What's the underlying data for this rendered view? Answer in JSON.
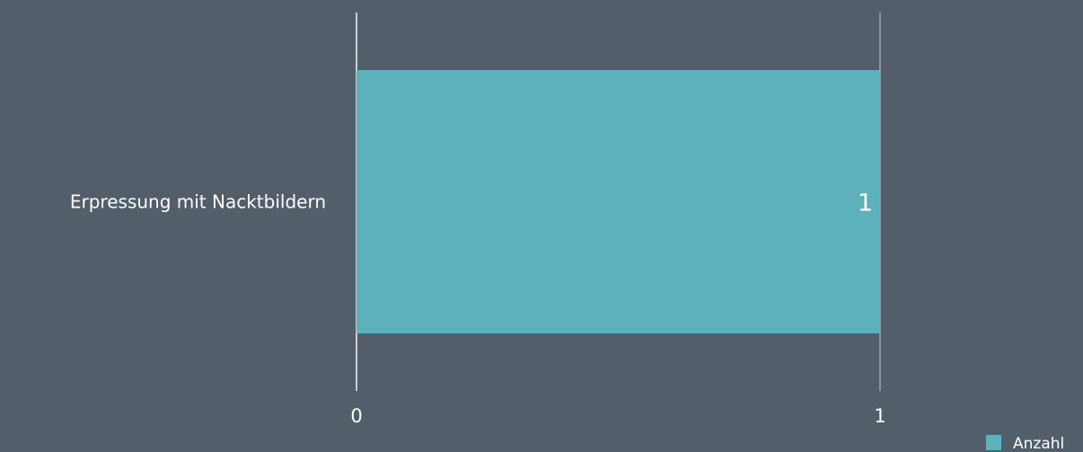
{
  "chart_data": {
    "type": "bar",
    "orientation": "horizontal",
    "categories": [
      "Erpressung mit Nacktbildern"
    ],
    "series": [
      {
        "name": "Anzahl",
        "values": [
          1
        ],
        "color": "#5db1bc"
      }
    ],
    "xlim": [
      0,
      1
    ],
    "x_ticks": [
      "0",
      "1"
    ],
    "grid": true,
    "legend": "bottom-right",
    "colors": {
      "background": "#525f6b",
      "gridline": "#c9cfd4",
      "text": "#ffffff"
    }
  }
}
